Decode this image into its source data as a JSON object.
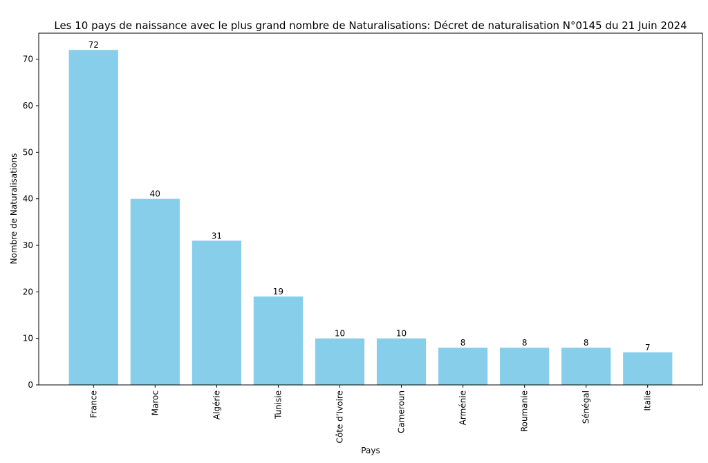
{
  "chart_data": {
    "type": "bar",
    "title": "Les 10 pays de naissance avec le plus grand nombre de Naturalisations: Décret de naturalisation N°0145 du 21 Juin 2024",
    "xlabel": "Pays",
    "ylabel": "Nombre de Naturalisations",
    "categories": [
      "France",
      "Maroc",
      "Algérie",
      "Tunisie",
      "Côte d’Ivoire",
      "Cameroun",
      "Arménie",
      "Roumanie",
      "Sénégal",
      "Italie"
    ],
    "values": [
      72,
      40,
      31,
      19,
      10,
      10,
      8,
      8,
      8,
      7
    ],
    "data_labels": [
      "72",
      "40",
      "31",
      "19",
      "10",
      "10",
      "8",
      "8",
      "8",
      "7"
    ],
    "ylim": [
      0,
      75.6
    ],
    "yticks": [
      "0",
      "10",
      "20",
      "30",
      "40",
      "50",
      "60",
      "70"
    ],
    "bar_color": "#87CEEB",
    "grid": false,
    "x_tick_rotation": 90
  }
}
